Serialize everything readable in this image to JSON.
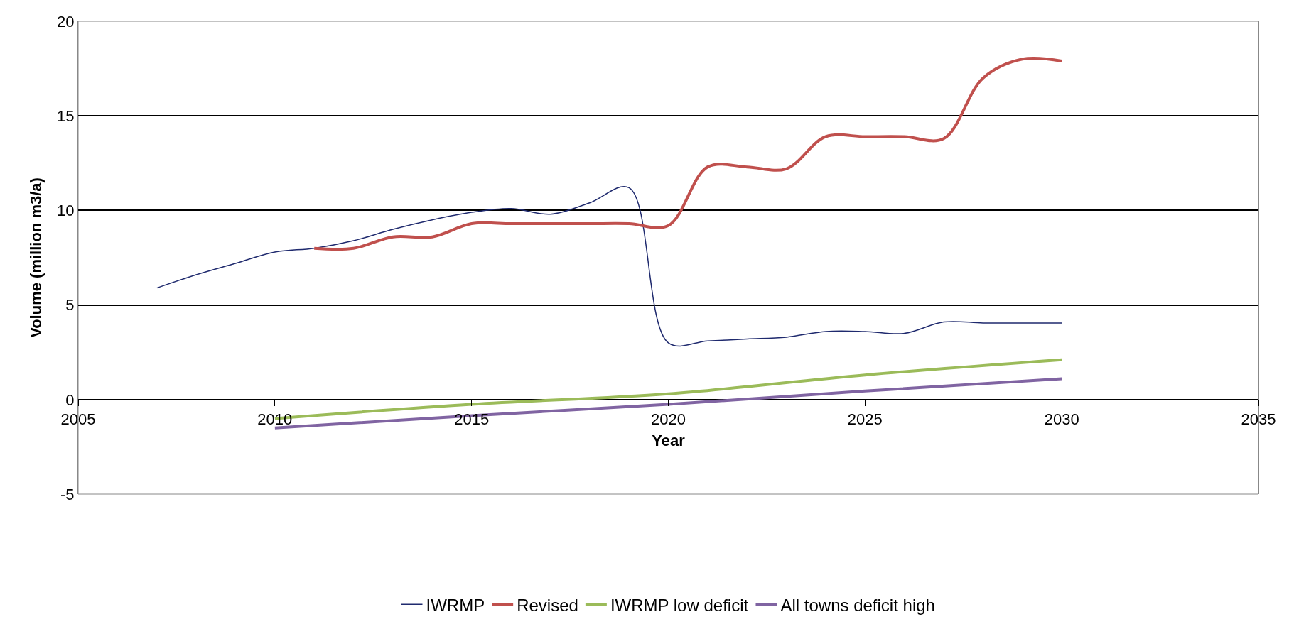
{
  "chart_data": {
    "type": "line",
    "xlabel": "Year",
    "ylabel": "Volume (million m3/a)",
    "xlim": [
      2005,
      2035
    ],
    "xticks": [
      2005,
      2010,
      2015,
      2020,
      2025,
      2030,
      2035
    ],
    "ylim": [
      -5,
      20
    ],
    "yticks": [
      -5,
      0,
      5,
      10,
      15,
      20
    ],
    "grid": "y",
    "legend": "bottom",
    "marker": "none",
    "line_style": "solid",
    "series": [
      {
        "name": "IWRMP",
        "color": "#1f2a6e",
        "x": [
          2007,
          2008,
          2009,
          2010,
          2011,
          2012,
          2013,
          2014,
          2015,
          2016,
          2017,
          2018,
          2019,
          2020,
          2021,
          2022,
          2023,
          2024,
          2025,
          2026,
          2027,
          2028,
          2029,
          2030
        ],
        "values": [
          5.9,
          6.6,
          7.2,
          7.8,
          8.0,
          8.4,
          9.0,
          9.5,
          9.9,
          10.1,
          9.8,
          10.4,
          11.2,
          3.0,
          3.1,
          3.2,
          3.3,
          3.6,
          3.6,
          3.5,
          4.1,
          4.05,
          4.05,
          4.05
        ]
      },
      {
        "name": "Revised",
        "color": "#c0504d",
        "x": [
          2011,
          2012,
          2013,
          2014,
          2015,
          2016,
          2017,
          2018,
          2019,
          2020,
          2021,
          2022,
          2023,
          2024,
          2025,
          2026,
          2027,
          2028,
          2029,
          2030
        ],
        "values": [
          8.0,
          8.0,
          8.6,
          8.6,
          9.3,
          9.3,
          9.3,
          9.3,
          9.3,
          9.2,
          12.3,
          12.3,
          12.2,
          13.9,
          13.9,
          13.9,
          13.8,
          17.0,
          18.0,
          17.9
        ]
      },
      {
        "name": "IWRMP low deficit",
        "color": "#9bbb59",
        "x": [
          2010,
          2015,
          2020,
          2025,
          2030
        ],
        "values": [
          -1.0,
          -0.25,
          0.3,
          1.3,
          2.1
        ]
      },
      {
        "name": "All towns deficit high",
        "color": "#8064a2",
        "x": [
          2010,
          2015,
          2020,
          2025,
          2030
        ],
        "values": [
          -1.5,
          -0.85,
          -0.25,
          0.45,
          1.1
        ]
      }
    ]
  }
}
